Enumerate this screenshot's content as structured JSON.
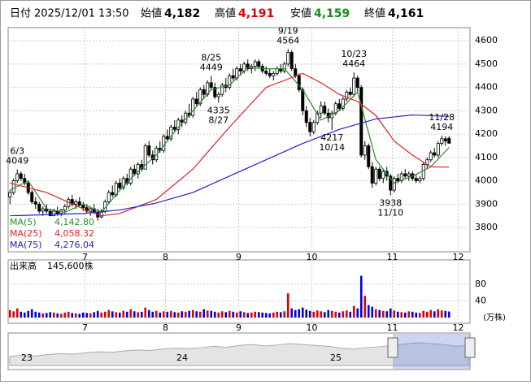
{
  "header": {
    "date_label": "日付",
    "date": "2025/12/01 13:50",
    "open_label": "始値",
    "open": "4,182",
    "high_label": "高値",
    "high": "4,191",
    "low_label": "安値",
    "low": "4,159",
    "close_label": "終値",
    "close": "4,161"
  },
  "chart_data": {
    "type": "candlestick",
    "up_fill": "#ffffff",
    "down_fill": "#000000",
    "ylim": [
      3696,
      4656
    ],
    "yticks": [
      3800,
      3900,
      4000,
      4100,
      4200,
      4300,
      4400,
      4500,
      4600
    ],
    "grid": true,
    "xticks": [
      {
        "value": 21,
        "label": "7"
      },
      {
        "value": 43,
        "label": "8"
      },
      {
        "value": 63,
        "label": "9"
      },
      {
        "value": 83,
        "label": "10"
      },
      {
        "value": 105,
        "label": "11"
      },
      {
        "value": 123,
        "label": "12"
      }
    ],
    "ohlc": [
      [
        3930,
        3960,
        3900,
        3950
      ],
      [
        3950,
        4010,
        3940,
        4000
      ],
      [
        4000,
        4049,
        3990,
        4030
      ],
      [
        4030,
        4040,
        4000,
        4010
      ],
      [
        4010,
        4030,
        3980,
        3990
      ],
      [
        3990,
        4000,
        3940,
        3950
      ],
      [
        3950,
        3960,
        3900,
        3910
      ],
      [
        3910,
        3930,
        3880,
        3900
      ],
      [
        3900,
        3910,
        3860,
        3870
      ],
      [
        3870,
        3890,
        3850,
        3880
      ],
      [
        3880,
        3900,
        3860,
        3870
      ],
      [
        3870,
        3880,
        3840,
        3850
      ],
      [
        3850,
        3880,
        3840,
        3870
      ],
      [
        3870,
        3890,
        3850,
        3860
      ],
      [
        3860,
        3880,
        3840,
        3875
      ],
      [
        3875,
        3900,
        3860,
        3890
      ],
      [
        3890,
        3930,
        3880,
        3920
      ],
      [
        3920,
        3940,
        3890,
        3900
      ],
      [
        3900,
        3920,
        3880,
        3910
      ],
      [
        3910,
        3930,
        3890,
        3895
      ],
      [
        3895,
        3910,
        3870,
        3885
      ],
      [
        3885,
        3900,
        3860,
        3870
      ],
      [
        3870,
        3890,
        3850,
        3880
      ],
      [
        3880,
        3900,
        3860,
        3865
      ],
      [
        3865,
        3880,
        3830,
        3845
      ],
      [
        3845,
        3880,
        3840,
        3870
      ],
      [
        3870,
        3920,
        3860,
        3910
      ],
      [
        3910,
        3960,
        3900,
        3950
      ],
      [
        3950,
        3980,
        3930,
        3940
      ],
      [
        3940,
        4000,
        3930,
        3990
      ],
      [
        3990,
        4010,
        3960,
        3970
      ],
      [
        3970,
        4020,
        3960,
        4010
      ],
      [
        4010,
        4030,
        3980,
        3990
      ],
      [
        3990,
        4060,
        3980,
        4050
      ],
      [
        4050,
        4070,
        4020,
        4030
      ],
      [
        4030,
        4080,
        4010,
        4070
      ],
      [
        4070,
        4090,
        4040,
        4050
      ],
      [
        4050,
        4160,
        4050,
        4150
      ],
      [
        4150,
        4170,
        4100,
        4110
      ],
      [
        4110,
        4130,
        4070,
        4090
      ],
      [
        4090,
        4150,
        4080,
        4140
      ],
      [
        4140,
        4170,
        4120,
        4130
      ],
      [
        4130,
        4200,
        4120,
        4190
      ],
      [
        4190,
        4220,
        4170,
        4180
      ],
      [
        4180,
        4240,
        4170,
        4230
      ],
      [
        4230,
        4260,
        4210,
        4220
      ],
      [
        4220,
        4270,
        4200,
        4260
      ],
      [
        4260,
        4280,
        4230,
        4250
      ],
      [
        4250,
        4300,
        4240,
        4290
      ],
      [
        4290,
        4330,
        4270,
        4280
      ],
      [
        4280,
        4360,
        4270,
        4350
      ],
      [
        4350,
        4380,
        4320,
        4330
      ],
      [
        4330,
        4400,
        4320,
        4390
      ],
      [
        4390,
        4410,
        4350,
        4370
      ],
      [
        4370,
        4430,
        4360,
        4420
      ],
      [
        4420,
        4449,
        4390,
        4400
      ],
      [
        4400,
        4420,
        4350,
        4360
      ],
      [
        4360,
        4380,
        4335,
        4370
      ],
      [
        4370,
        4420,
        4360,
        4410
      ],
      [
        4410,
        4440,
        4380,
        4400
      ],
      [
        4400,
        4460,
        4390,
        4450
      ],
      [
        4450,
        4480,
        4430,
        4440
      ],
      [
        4440,
        4490,
        4430,
        4480
      ],
      [
        4480,
        4500,
        4450,
        4470
      ],
      [
        4470,
        4510,
        4460,
        4500
      ],
      [
        4500,
        4520,
        4470,
        4480
      ],
      [
        4480,
        4500,
        4460,
        4490
      ],
      [
        4490,
        4520,
        4470,
        4510
      ],
      [
        4510,
        4520,
        4480,
        4490
      ],
      [
        4490,
        4500,
        4460,
        4470
      ],
      [
        4470,
        4490,
        4450,
        4460
      ],
      [
        4460,
        4480,
        4440,
        4450
      ],
      [
        4450,
        4470,
        4430,
        4460
      ],
      [
        4460,
        4490,
        4450,
        4480
      ],
      [
        4480,
        4500,
        4460,
        4470
      ],
      [
        4470,
        4510,
        4460,
        4500
      ],
      [
        4500,
        4564,
        4490,
        4550
      ],
      [
        4550,
        4560,
        4470,
        4480
      ],
      [
        4480,
        4500,
        4440,
        4450
      ],
      [
        4450,
        4460,
        4380,
        4390
      ],
      [
        4390,
        4400,
        4280,
        4300
      ],
      [
        4300,
        4320,
        4230,
        4250
      ],
      [
        4250,
        4270,
        4190,
        4210
      ],
      [
        4210,
        4260,
        4200,
        4250
      ],
      [
        4250,
        4300,
        4240,
        4290
      ],
      [
        4290,
        4340,
        4270,
        4320
      ],
      [
        4320,
        4340,
        4280,
        4290
      ],
      [
        4290,
        4310,
        4250,
        4270
      ],
      [
        4270,
        4300,
        4217,
        4290
      ],
      [
        4290,
        4340,
        4280,
        4330
      ],
      [
        4330,
        4350,
        4300,
        4310
      ],
      [
        4310,
        4360,
        4300,
        4350
      ],
      [
        4350,
        4390,
        4340,
        4380
      ],
      [
        4380,
        4400,
        4360,
        4370
      ],
      [
        4370,
        4464,
        4360,
        4440
      ],
      [
        4440,
        4450,
        4380,
        4400
      ],
      [
        4400,
        4410,
        4100,
        4110
      ],
      [
        4110,
        4170,
        4090,
        4150
      ],
      [
        4150,
        4160,
        4050,
        4060
      ],
      [
        4060,
        4080,
        3970,
        3990
      ],
      [
        3990,
        4060,
        3980,
        4050
      ],
      [
        4050,
        4060,
        4000,
        4010
      ],
      [
        4010,
        4050,
        3990,
        4040
      ],
      [
        4040,
        4060,
        4000,
        4020
      ],
      [
        4020,
        4030,
        3938,
        3960
      ],
      [
        3960,
        4020,
        3950,
        4010
      ],
      [
        4010,
        4030,
        3990,
        4000
      ],
      [
        4000,
        4040,
        3990,
        4030
      ],
      [
        4030,
        4050,
        4010,
        4020
      ],
      [
        4020,
        4040,
        4000,
        4030
      ],
      [
        4030,
        4040,
        4000,
        4010
      ],
      [
        4010,
        4030,
        3990,
        4000
      ],
      [
        4000,
        4020,
        3990,
        4010
      ],
      [
        4010,
        4080,
        4000,
        4070
      ],
      [
        4070,
        4100,
        4050,
        4090
      ],
      [
        4090,
        4130,
        4080,
        4120
      ],
      [
        4120,
        4140,
        4100,
        4110
      ],
      [
        4110,
        4170,
        4100,
        4160
      ],
      [
        4160,
        4194,
        4150,
        4180
      ],
      [
        4180,
        4190,
        4150,
        4170
      ],
      [
        4182,
        4191,
        4159,
        4161
      ]
    ],
    "annotations": [
      {
        "label": "6/3",
        "value": 4049
      },
      {
        "label": "8/25",
        "value": 4449
      },
      {
        "label": "8/27",
        "value": 4335
      },
      {
        "label": "9/19",
        "value": 4564
      },
      {
        "label": "10/23",
        "value": 4464
      },
      {
        "label": "10/14",
        "value": 4217
      },
      {
        "label": "11/10",
        "value": 3938
      },
      {
        "label": "11/28",
        "value": 4194
      }
    ],
    "series": [
      {
        "name": "MA(5)",
        "last_label": "4,142.80",
        "color": "#2e8b2e",
        "x": [
          0,
          5,
          10,
          15,
          20,
          25,
          30,
          35,
          40,
          45,
          50,
          55,
          60,
          65,
          70,
          75,
          80,
          85,
          90,
          95,
          100,
          105,
          110,
          115,
          120
        ],
        "values": [
          3960,
          4000,
          3880,
          3865,
          3900,
          3865,
          3960,
          4040,
          4110,
          4210,
          4300,
          4390,
          4410,
          4485,
          4480,
          4480,
          4390,
          4260,
          4300,
          4380,
          4090,
          3990,
          4020,
          4060,
          4142.8
        ]
      },
      {
        "name": "MA(25)",
        "last_label": "4,058.32",
        "color": "#e02020",
        "x": [
          0,
          10,
          20,
          25,
          30,
          40,
          50,
          60,
          70,
          80,
          85,
          90,
          95,
          100,
          105,
          110,
          115,
          120
        ],
        "values": [
          3990,
          3950,
          3880,
          3850,
          3860,
          3920,
          4050,
          4230,
          4400,
          4460,
          4420,
          4370,
          4340,
          4280,
          4170,
          4110,
          4060,
          4058.32
        ]
      },
      {
        "name": "MA(75)",
        "last_label": "4,276.04",
        "color": "#2020d0",
        "x": [
          0,
          20,
          30,
          40,
          50,
          60,
          70,
          80,
          90,
          100,
          110,
          120
        ],
        "values": [
          3850,
          3860,
          3875,
          3905,
          3950,
          4020,
          4090,
          4160,
          4220,
          4265,
          4282,
          4276.04
        ]
      }
    ],
    "volume": {
      "label": "出来高",
      "last": "145,600株",
      "unit": "(万株)",
      "up_color": "#e00000",
      "down_color": "#0000e0",
      "ylim": [
        0,
        138
      ],
      "yticks": [
        40,
        80
      ],
      "values": [
        18,
        15,
        22,
        14,
        12,
        16,
        20,
        14,
        12,
        10,
        11,
        13,
        12,
        10,
        9,
        12,
        14,
        11,
        10,
        9,
        12,
        11,
        10,
        13,
        16,
        12,
        14,
        18,
        15,
        13,
        12,
        16,
        14,
        20,
        15,
        13,
        14,
        24,
        18,
        14,
        16,
        12,
        15,
        14,
        16,
        13,
        12,
        15,
        14,
        16,
        18,
        15,
        14,
        20,
        17,
        16,
        14,
        12,
        15,
        13,
        16,
        14,
        12,
        15,
        13,
        11,
        12,
        14,
        13,
        12,
        11,
        10,
        12,
        14,
        13,
        15,
        58,
        22,
        18,
        20,
        24,
        19,
        16,
        14,
        17,
        15,
        13,
        18,
        16,
        14,
        12,
        15,
        17,
        14,
        28,
        22,
        100,
        52,
        30,
        26,
        20,
        18,
        16,
        15,
        22,
        17,
        14,
        13,
        12,
        15,
        14,
        12,
        11,
        16,
        14,
        18,
        15,
        20,
        17,
        16,
        14.56
      ]
    }
  },
  "navigator": {
    "labels": [
      "23",
      "24",
      "25"
    ],
    "ylim": [
      2000,
      5200
    ],
    "values": [
      3000,
      3100,
      3050,
      3200,
      3300,
      3250,
      3400,
      3500,
      3450,
      3600,
      3700,
      3650,
      3800,
      3900,
      3850,
      3950,
      4100,
      4000,
      4200,
      4300,
      4150,
      4250,
      4400,
      4300,
      4200,
      4100,
      3900,
      3800,
      3950,
      4050,
      4200,
      4350,
      4500,
      4400,
      4300,
      4100,
      4200
    ]
  }
}
